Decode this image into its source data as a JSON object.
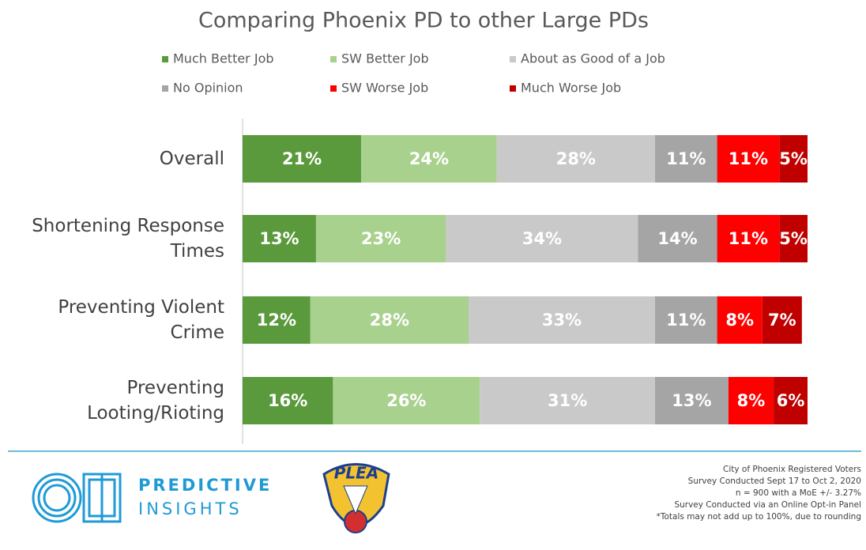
{
  "chart_data": {
    "type": "stacked-bar-horizontal",
    "title": "Comparing Phoenix PD to other Large PDs",
    "categories": [
      "Overall",
      "Shortening Response Times",
      "Preventing Violent Crime",
      "Preventing Looting/Rioting"
    ],
    "xlim": [
      0,
      100
    ],
    "series": [
      {
        "name": "Much Better Job",
        "color": "#5a9a3c",
        "values": [
          21,
          13,
          12,
          16
        ],
        "value_labels": [
          "21%",
          "13%",
          "12%",
          "16%"
        ]
      },
      {
        "name": "SW Better Job",
        "color": "#a9d18e",
        "values": [
          24,
          23,
          28,
          26
        ],
        "value_labels": [
          "24%",
          "23%",
          "28%",
          "26%"
        ]
      },
      {
        "name": "About as Good of a Job",
        "color": "#c9c9c9",
        "values": [
          28,
          34,
          33,
          31
        ],
        "value_labels": [
          "28%",
          "34%",
          "33%",
          "31%"
        ]
      },
      {
        "name": "No Opinion",
        "color": "#a5a5a5",
        "values": [
          11,
          14,
          11,
          13
        ],
        "value_labels": [
          "11%",
          "14%",
          "11%",
          "13%"
        ]
      },
      {
        "name": "SW Worse Job",
        "color": "#ff0000",
        "values": [
          11,
          11,
          8,
          8
        ],
        "value_labels": [
          "11%",
          "11%",
          "8%",
          "8%"
        ]
      },
      {
        "name": "Much Worse Job",
        "color": "#c00000",
        "values": [
          5,
          5,
          7,
          6
        ],
        "value_labels": [
          "5%",
          "5%",
          "7%",
          "6%"
        ]
      }
    ]
  },
  "footer": {
    "brand": [
      "PREDICTIVE",
      "INSIGHTS"
    ],
    "logo": "PLEA",
    "notes": [
      "City of Phoenix Registered Voters",
      "Survey Conducted Sept 17 to Oct 2, 2020",
      "n = 900 with a MoE +/- 3.27%",
      "Survey Conducted via an Online Opt-in Panel",
      "*Totals may not add up to 100%, due to rounding"
    ]
  }
}
